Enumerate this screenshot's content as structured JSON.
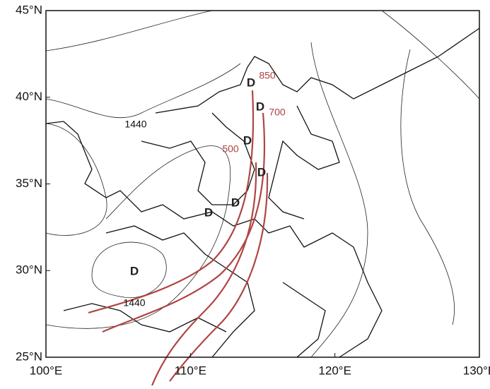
{
  "map": {
    "xlim": [
      100,
      130
    ],
    "ylim": [
      25,
      45
    ],
    "xticks": [
      {
        "value": 100,
        "label": "100°E"
      },
      {
        "value": 110,
        "label": "110°E"
      },
      {
        "value": 120,
        "label": "120°E"
      },
      {
        "value": 130,
        "label": "130°E"
      }
    ],
    "yticks": [
      {
        "value": 25,
        "label": "25°N"
      },
      {
        "value": 30,
        "label": "30°N"
      },
      {
        "value": 35,
        "label": "35°N"
      },
      {
        "value": 40,
        "label": "40°N"
      },
      {
        "value": 45,
        "label": "45°N"
      }
    ],
    "contour_labels": [
      "1440",
      "1440"
    ],
    "level_labels": [
      "850",
      "700",
      "500"
    ],
    "low_markers": [
      "D",
      "D",
      "D",
      "D",
      "D",
      "D",
      "D"
    ]
  }
}
